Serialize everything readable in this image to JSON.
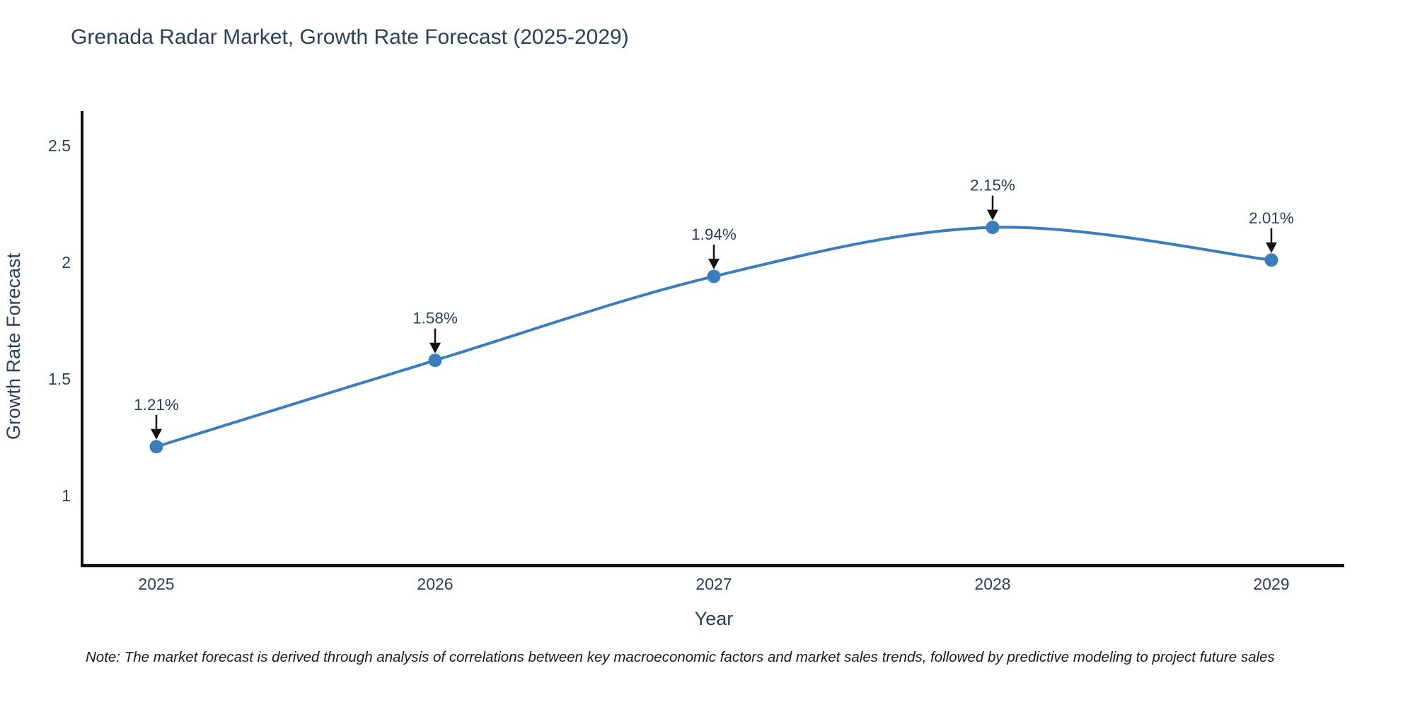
{
  "title": "Grenada Radar Market, Growth Rate Forecast (2025-2029)",
  "note": "Note: The market forecast is derived through analysis of correlations between key macroeconomic factors and market sales trends, followed by predictive modeling to project future sales",
  "chart_data": {
    "type": "line",
    "title": "Grenada Radar Market, Growth Rate Forecast (2025-2029)",
    "x": [
      2025,
      2026,
      2027,
      2028,
      2029
    ],
    "y": [
      1.21,
      1.58,
      1.94,
      2.15,
      2.01
    ],
    "point_labels": [
      "1.21%",
      "1.58%",
      "1.94%",
      "2.15%",
      "2.01%"
    ],
    "xlabel": "Year",
    "ylabel": "Growth Rate Forecast",
    "yticks": [
      2.5,
      2,
      1.5,
      1
    ],
    "ylim": [
      0.7,
      2.64
    ],
    "line_shape": "spline",
    "grid": false,
    "legend_position": "none",
    "colors": {
      "line": "#3b7dbd",
      "marker": "#3b7dbd",
      "axis_line": "#111111",
      "chart_text": "#2a3f5f",
      "annotation_text": "#2a3f5f",
      "annotation_arrow": "#111111",
      "note_text": "#1a1a1a",
      "background": "#ffffff"
    }
  }
}
